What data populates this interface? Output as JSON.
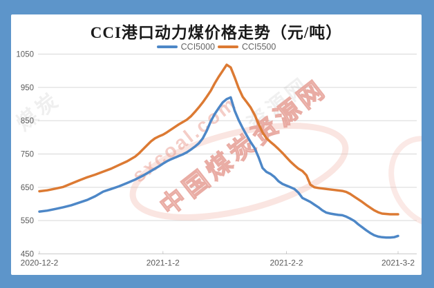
{
  "page": {
    "background_color": "#5d95ca",
    "panel_color": "#ffffff"
  },
  "chart_data": {
    "type": "line",
    "title": "CCI港口动力煤价格走势（元/吨）",
    "legend": {
      "position": "top-center",
      "items": [
        "CCI5000",
        "CCI5500"
      ]
    },
    "x_axis": {
      "tick_labels": [
        "2020-12-2",
        "2021-1-2",
        "2021-2-2",
        "2021-3-2"
      ],
      "tick_days": [
        0,
        31,
        62,
        90
      ],
      "total_days": 90
    },
    "y_axis": {
      "ticks": [
        1050,
        950,
        850,
        750,
        650,
        550,
        450
      ],
      "min": 450,
      "max": 1050,
      "grid": true
    },
    "series": [
      {
        "name": "CCI5000",
        "color": "#4d87c7",
        "points": [
          [
            0,
            577
          ],
          [
            2,
            580
          ],
          [
            4,
            585
          ],
          [
            6,
            590
          ],
          [
            8,
            596
          ],
          [
            10,
            604
          ],
          [
            12,
            612
          ],
          [
            14,
            623
          ],
          [
            15,
            630
          ],
          [
            16,
            637
          ],
          [
            17,
            641
          ],
          [
            18,
            645
          ],
          [
            20,
            653
          ],
          [
            22,
            663
          ],
          [
            24,
            673
          ],
          [
            26,
            685
          ],
          [
            28,
            699
          ],
          [
            30,
            713
          ],
          [
            31,
            721
          ],
          [
            32,
            728
          ],
          [
            33,
            734
          ],
          [
            34,
            739
          ],
          [
            35,
            744
          ],
          [
            36,
            749
          ],
          [
            37,
            755
          ],
          [
            38,
            763
          ],
          [
            39,
            772
          ],
          [
            40,
            782
          ],
          [
            41,
            797
          ],
          [
            42,
            820
          ],
          [
            43,
            848
          ],
          [
            44,
            870
          ],
          [
            45,
            888
          ],
          [
            46,
            905
          ],
          [
            47,
            915
          ],
          [
            48,
            920
          ],
          [
            49,
            880
          ],
          [
            50,
            852
          ],
          [
            51,
            828
          ],
          [
            52,
            806
          ],
          [
            53,
            786
          ],
          [
            54,
            768
          ],
          [
            55,
            740
          ],
          [
            56,
            708
          ],
          [
            57,
            696
          ],
          [
            58,
            690
          ],
          [
            59,
            681
          ],
          [
            60,
            668
          ],
          [
            61,
            660
          ],
          [
            62,
            655
          ],
          [
            63,
            650
          ],
          [
            64,
            645
          ],
          [
            65,
            634
          ],
          [
            66,
            618
          ],
          [
            67,
            612
          ],
          [
            68,
            606
          ],
          [
            69,
            598
          ],
          [
            70,
            590
          ],
          [
            71,
            581
          ],
          [
            72,
            574
          ],
          [
            73,
            571
          ],
          [
            74,
            569
          ],
          [
            75,
            567
          ],
          [
            76,
            566
          ],
          [
            77,
            562
          ],
          [
            78,
            556
          ],
          [
            79,
            549
          ],
          [
            80,
            539
          ],
          [
            81,
            530
          ],
          [
            82,
            521
          ],
          [
            83,
            513
          ],
          [
            84,
            506
          ],
          [
            85,
            502
          ],
          [
            86,
            500
          ],
          [
            87,
            499
          ],
          [
            88,
            499
          ],
          [
            89,
            500
          ],
          [
            90,
            504
          ]
        ]
      },
      {
        "name": "CCI5500",
        "color": "#dc7a33",
        "points": [
          [
            0,
            638
          ],
          [
            2,
            641
          ],
          [
            4,
            646
          ],
          [
            6,
            651
          ],
          [
            8,
            661
          ],
          [
            10,
            671
          ],
          [
            12,
            680
          ],
          [
            14,
            688
          ],
          [
            16,
            697
          ],
          [
            18,
            706
          ],
          [
            20,
            717
          ],
          [
            22,
            728
          ],
          [
            24,
            742
          ],
          [
            25,
            752
          ],
          [
            26,
            764
          ],
          [
            27,
            776
          ],
          [
            28,
            788
          ],
          [
            29,
            797
          ],
          [
            30,
            803
          ],
          [
            31,
            808
          ],
          [
            32,
            815
          ],
          [
            33,
            823
          ],
          [
            34,
            831
          ],
          [
            35,
            839
          ],
          [
            36,
            846
          ],
          [
            37,
            853
          ],
          [
            38,
            863
          ],
          [
            39,
            876
          ],
          [
            40,
            890
          ],
          [
            41,
            905
          ],
          [
            42,
            922
          ],
          [
            43,
            940
          ],
          [
            44,
            962
          ],
          [
            45,
            982
          ],
          [
            46,
            1000
          ],
          [
            47,
            1018
          ],
          [
            48,
            1010
          ],
          [
            49,
            980
          ],
          [
            50,
            948
          ],
          [
            51,
            922
          ],
          [
            52,
            906
          ],
          [
            53,
            890
          ],
          [
            54,
            868
          ],
          [
            55,
            840
          ],
          [
            56,
            815
          ],
          [
            57,
            797
          ],
          [
            58,
            786
          ],
          [
            59,
            776
          ],
          [
            60,
            765
          ],
          [
            61,
            753
          ],
          [
            62,
            740
          ],
          [
            63,
            727
          ],
          [
            64,
            716
          ],
          [
            65,
            706
          ],
          [
            66,
            699
          ],
          [
            67,
            686
          ],
          [
            68,
            658
          ],
          [
            69,
            650
          ],
          [
            70,
            648
          ],
          [
            72,
            645
          ],
          [
            74,
            642
          ],
          [
            76,
            639
          ],
          [
            77,
            636
          ],
          [
            78,
            630
          ],
          [
            79,
            622
          ],
          [
            80,
            614
          ],
          [
            81,
            606
          ],
          [
            82,
            597
          ],
          [
            83,
            589
          ],
          [
            84,
            581
          ],
          [
            85,
            575
          ],
          [
            86,
            571
          ],
          [
            87,
            570
          ],
          [
            88,
            569
          ],
          [
            89,
            569
          ],
          [
            90,
            569
          ]
        ]
      }
    ]
  },
  "watermark": {
    "brand_url": "sxcoal.com",
    "brand_name": "中国煤炭资源网",
    "ghost_text_left": "煤炭",
    "ghost_text_right": "资源网",
    "pink_color": "#e8998e",
    "ghost_color": "#9a9a9a"
  },
  "style": {
    "grid_color": "#d6d6d6",
    "axis_color": "#c9c9c9",
    "tick_text_color": "#595959",
    "line_width": 3.5
  }
}
